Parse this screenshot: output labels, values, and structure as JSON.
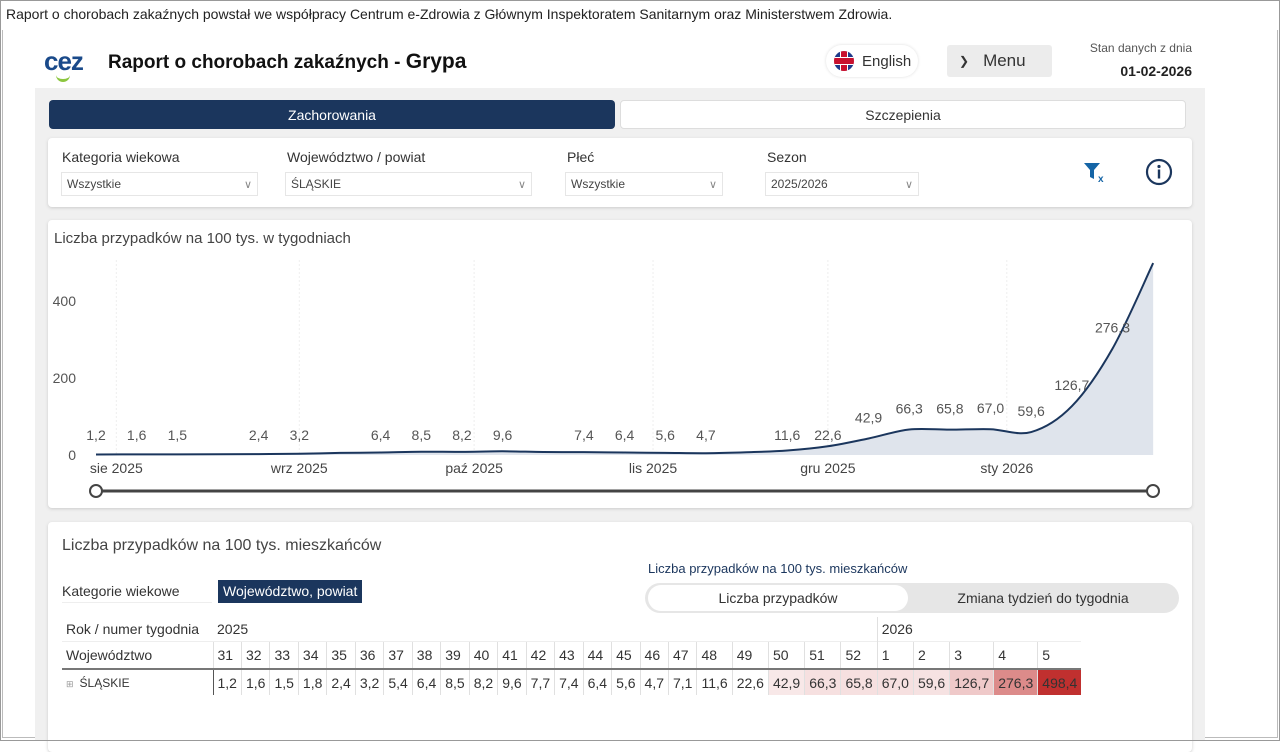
{
  "banner": "Raport o chorobach zakaźnych powstał we współpracy Centrum e-Zdrowia z Głównym Inspektoratem Sanitarnym oraz Ministerstwem Zdrowia.",
  "header": {
    "logo": "cez",
    "title": "Raport o chorobach zakaźnych - ",
    "title_bold": "Grypa",
    "language": "English",
    "menu": "Menu",
    "data_as_of_label": "Stan danych z dnia",
    "data_as_of": "01-02-2026"
  },
  "tabs": [
    {
      "label": "Zachorowania",
      "active": true
    },
    {
      "label": "Szczepienia",
      "active": false
    }
  ],
  "filters": [
    {
      "label": "Kategoria wiekowa",
      "value": "Wszystkie"
    },
    {
      "label": "Województwo / powiat",
      "value": "ŚLĄSKIE"
    },
    {
      "label": "Płeć",
      "value": "Wszystkie"
    },
    {
      "label": "Sezon",
      "value": "2025/2026"
    }
  ],
  "icons": {
    "clear_filters": "filter-clear-icon",
    "info": "info-icon"
  },
  "colors": {
    "primary": "#1b365d",
    "line": "#1b365d",
    "area": "#dfe4ec",
    "heat": "#c0302f"
  },
  "chart_data": {
    "type": "area",
    "title": "Liczba przypadków na 100 tys. w tygodniach",
    "x": [
      "2025-W31",
      "2025-W32",
      "2025-W33",
      "2025-W34",
      "2025-W35",
      "2025-W36",
      "2025-W37",
      "2025-W38",
      "2025-W39",
      "2025-W40",
      "2025-W41",
      "2025-W42",
      "2025-W43",
      "2025-W44",
      "2025-W45",
      "2025-W46",
      "2025-W47",
      "2025-W48",
      "2025-W49",
      "2025-W50",
      "2025-W51",
      "2025-W52",
      "2026-W01",
      "2026-W02",
      "2026-W03",
      "2026-W04",
      "2026-W05"
    ],
    "values": [
      1.2,
      1.6,
      1.5,
      1.8,
      2.4,
      3.2,
      5.4,
      6.4,
      8.5,
      8.2,
      9.6,
      7.7,
      7.4,
      6.4,
      5.6,
      4.7,
      7.1,
      11.6,
      22.6,
      42.9,
      66.3,
      65.8,
      67.0,
      59.6,
      126.7,
      276.3,
      498.4
    ],
    "data_labels": [
      "1,2",
      "1,6",
      "1,5",
      null,
      "2,4",
      "3,2",
      null,
      "6,4",
      "8,5",
      "8,2",
      "9,6",
      null,
      "7,4",
      "6,4",
      "5,6",
      "4,7",
      null,
      "11,6",
      "22,6",
      "42,9",
      "66,3",
      "65,8",
      "67,0",
      "59,6",
      "126,7",
      "276,3",
      "498,4"
    ],
    "x_ticks": [
      {
        "label": "sie 2025",
        "week": 31.5
      },
      {
        "label": "wrz 2025",
        "week": 36
      },
      {
        "label": "paź 2025",
        "week": 40.3
      },
      {
        "label": "lis 2025",
        "week": 44.7
      },
      {
        "label": "gru 2025",
        "week": 49
      },
      {
        "label": "sty 2026",
        "week": 53.4
      }
    ],
    "y_ticks": [
      "0",
      "200",
      "400"
    ],
    "ylim": [
      0,
      500
    ],
    "grid": "vertical"
  },
  "table_section": {
    "title": "Liczba przypadków na 100 tys. mieszkańców",
    "view_buttons": [
      {
        "label": "Kategorie wiekowe",
        "active": false
      },
      {
        "label": "Województwo, powiat",
        "active": true
      }
    ],
    "toggle_title": "Liczba przypadków na 100 tys. mieszkańców",
    "toggle": [
      {
        "label": "Liczba przypadków",
        "active": true
      },
      {
        "label": "Zmiana tydzień do tygodnia",
        "active": false
      }
    ],
    "row_header_year": "Rok / numer tygodnia",
    "row_header_region": "Województwo",
    "years": [
      {
        "year": "2025",
        "span": 22
      },
      {
        "year": "2026",
        "span": 5
      }
    ],
    "weeks": [
      "31",
      "32",
      "33",
      "34",
      "35",
      "36",
      "37",
      "38",
      "39",
      "40",
      "41",
      "42",
      "43",
      "44",
      "45",
      "46",
      "47",
      "48",
      "49",
      "50",
      "51",
      "52",
      "1",
      "2",
      "3",
      "4",
      "5"
    ],
    "rows": [
      {
        "region": "ŚLĄSKIE",
        "values": [
          "1,2",
          "1,6",
          "1,5",
          "1,8",
          "2,4",
          "3,2",
          "5,4",
          "6,4",
          "8,5",
          "8,2",
          "9,6",
          "7,7",
          "7,4",
          "6,4",
          "5,6",
          "4,7",
          "7,1",
          "11,6",
          "22,6",
          "42,9",
          "66,3",
          "65,8",
          "67,0",
          "59,6",
          "126,7",
          "276,3",
          "498,4"
        ]
      }
    ]
  }
}
